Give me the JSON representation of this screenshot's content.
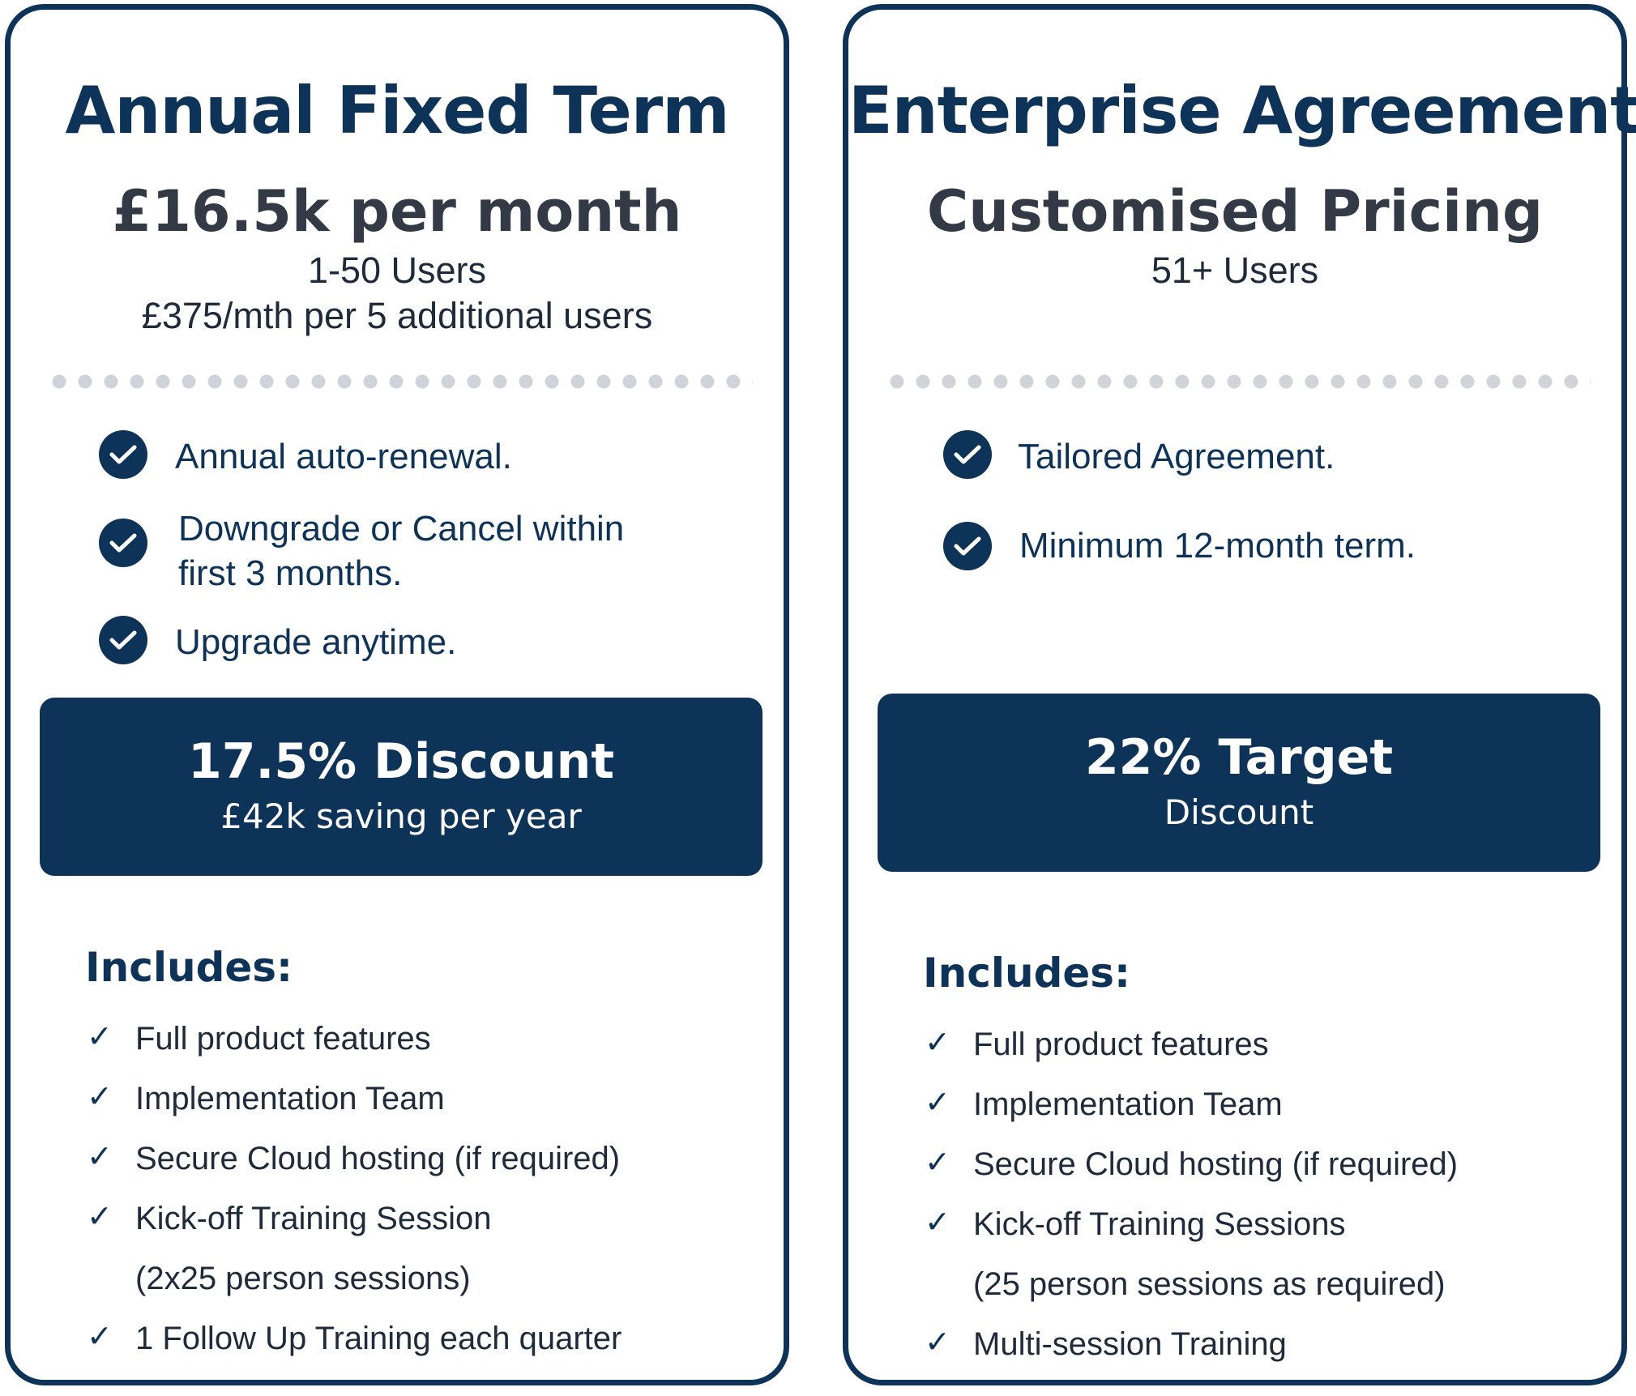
{
  "plans": [
    {
      "title": "Annual Fixed Term",
      "price": "£16.5k per month",
      "users": "1-50 Users",
      "extra": "£375/mth per 5 additional users",
      "features": [
        "Annual auto-renewal.",
        "Downgrade or Cancel within",
        "first 3 months.",
        "Upgrade anytime."
      ],
      "discount_main": "17.5% Discount",
      "discount_sub": "£42k saving per year",
      "includes_heading": "Includes:",
      "includes": [
        "Full product features",
        "Implementation Team",
        "Secure Cloud hosting (if required)",
        "Kick-off Training Session",
        "(2x25 person sessions)",
        "1 Follow Up Training each quarter"
      ]
    },
    {
      "title": "Enterprise Agreement",
      "price": "Customised Pricing",
      "users": "51+ Users",
      "features": [
        "Tailored Agreement.",
        "Minimum 12-month term."
      ],
      "discount_main": "22% Target",
      "discount_sub": "Discount",
      "includes_heading": "Includes:",
      "includes": [
        "Full product features",
        "Implementation Team",
        "Secure Cloud hosting (if required)",
        "Kick-off Training Sessions",
        "(25 person sessions as required)",
        "Multi-session Training"
      ]
    }
  ],
  "colors": {
    "navy": "#0e3358",
    "price_gray": "#333a45",
    "dot_gray": "#d0d3d8"
  },
  "icons": {
    "feature": "check-circle-icon",
    "include": "checkmark-icon"
  }
}
